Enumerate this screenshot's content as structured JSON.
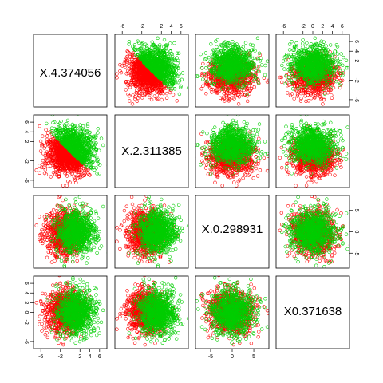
{
  "chart_data": {
    "type": "scatter",
    "variables": [
      "X.4.374056",
      "X.2.311385",
      "X.0.298931",
      "X0.371638"
    ],
    "ranges": [
      [
        -7.5,
        7.5
      ],
      [
        -7.5,
        7.5
      ],
      [
        -8.5,
        8.5
      ],
      [
        -7.5,
        7.5
      ]
    ],
    "ticks": [
      [
        -6,
        -2,
        2,
        4,
        6
      ],
      [
        -6,
        -2,
        2,
        4,
        6
      ],
      [
        -5,
        0,
        5
      ],
      [
        -6,
        -2,
        0,
        2,
        4,
        6
      ]
    ],
    "groups": [
      {
        "color": "#ff0000",
        "marker": "open-circle"
      },
      {
        "color": "#00cd00",
        "marker": "open-circle"
      }
    ],
    "points_per_group": 900,
    "approx_std": [
      2.3,
      2.3,
      2.6,
      2.2
    ],
    "grid": false,
    "legend": "none"
  }
}
